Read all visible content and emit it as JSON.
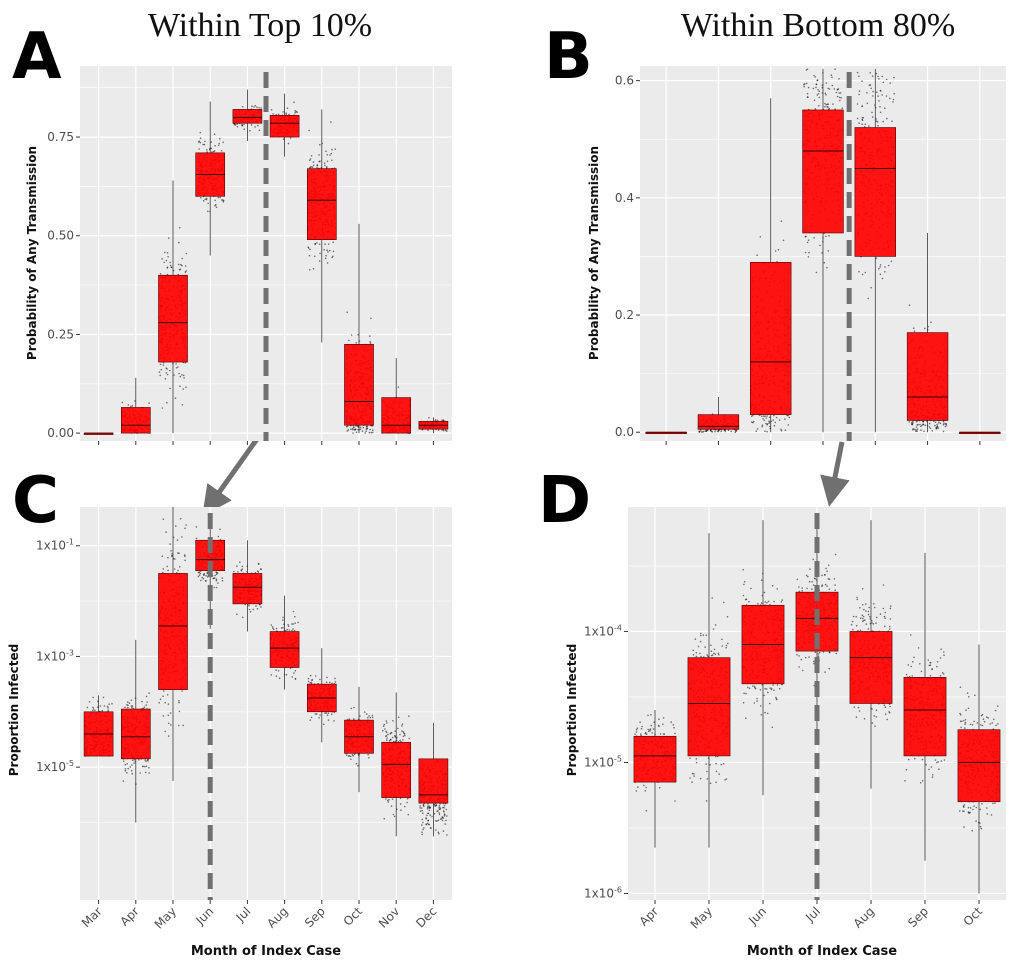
{
  "titles": {
    "left": "Within Top 10%",
    "right": "Within Bottom 80%"
  },
  "panel_letters": {
    "a": "A",
    "b": "B",
    "c": "C",
    "d": "D"
  },
  "xlabel": "Month of Index Case",
  "ylabel_top": "Probability of Any Transmission",
  "ylabel_bottom": "Proportion Infected",
  "colors": {
    "box_fill": "#ff0000",
    "panel_bg": "#ebebeb",
    "grid": "#ffffff",
    "dash_line": "#707070",
    "points": "#000000"
  },
  "chart_data": [
    {
      "panel": "A",
      "type": "boxplot",
      "title": "Within Top 10%",
      "xlabel": "",
      "ylabel": "Probability of Any Transmission",
      "yscale": "linear",
      "ylim": [
        -0.02,
        0.93
      ],
      "yticks": [
        0,
        0.25,
        0.5,
        0.75
      ],
      "ytick_labels": [
        "0.00",
        "0.25",
        "0.50",
        "0.75"
      ],
      "categories": [
        "Mar",
        "Apr",
        "May",
        "Jun",
        "Jul",
        "Aug",
        "Sep",
        "Oct",
        "Nov",
        "Dec"
      ],
      "boxes": [
        {
          "q1": 0.0,
          "median": 0.0,
          "q3": 0.0,
          "lo": 0.0,
          "hi": 0.0
        },
        {
          "q1": 0.0,
          "median": 0.02,
          "q3": 0.065,
          "lo": 0.0,
          "hi": 0.14
        },
        {
          "q1": 0.18,
          "median": 0.28,
          "q3": 0.4,
          "lo": 0.0,
          "hi": 0.64
        },
        {
          "q1": 0.6,
          "median": 0.655,
          "q3": 0.71,
          "lo": 0.45,
          "hi": 0.84
        },
        {
          "q1": 0.785,
          "median": 0.8,
          "q3": 0.82,
          "lo": 0.74,
          "hi": 0.87
        },
        {
          "q1": 0.75,
          "median": 0.785,
          "q3": 0.805,
          "lo": 0.7,
          "hi": 0.86
        },
        {
          "q1": 0.49,
          "median": 0.59,
          "q3": 0.67,
          "lo": 0.23,
          "hi": 0.82
        },
        {
          "q1": 0.02,
          "median": 0.08,
          "q3": 0.225,
          "lo": 0.0,
          "hi": 0.53
        },
        {
          "q1": 0.0,
          "median": 0.02,
          "q3": 0.09,
          "lo": 0.0,
          "hi": 0.19
        },
        {
          "q1": 0.01,
          "median": 0.02,
          "q3": 0.03,
          "lo": 0.0,
          "hi": 0.04
        }
      ],
      "vline_between": [
        "Jul",
        "Aug"
      ]
    },
    {
      "panel": "B",
      "type": "boxplot",
      "title": "Within Bottom 80%",
      "xlabel": "",
      "ylabel": "Probability of Any Transmission",
      "yscale": "linear",
      "ylim": [
        -0.015,
        0.625
      ],
      "yticks": [
        0,
        0.2,
        0.4,
        0.6
      ],
      "ytick_labels": [
        "0.0",
        "0.2",
        "0.4",
        "0.6"
      ],
      "categories": [
        "Apr",
        "May",
        "Jun",
        "Jul",
        "Aug",
        "Sep",
        "Oct"
      ],
      "boxes": [
        {
          "q1": 0.0,
          "median": 0.0,
          "q3": 0.0,
          "lo": 0.0,
          "hi": 0.0
        },
        {
          "q1": 0.005,
          "median": 0.01,
          "q3": 0.03,
          "lo": 0.0,
          "hi": 0.06
        },
        {
          "q1": 0.03,
          "median": 0.12,
          "q3": 0.29,
          "lo": 0.0,
          "hi": 0.57
        },
        {
          "q1": 0.34,
          "median": 0.48,
          "q3": 0.55,
          "lo": 0.0,
          "hi": 0.62
        },
        {
          "q1": 0.3,
          "median": 0.45,
          "q3": 0.52,
          "lo": 0.0,
          "hi": 0.62
        },
        {
          "q1": 0.02,
          "median": 0.06,
          "q3": 0.17,
          "lo": 0.0,
          "hi": 0.34
        },
        {
          "q1": 0.0,
          "median": 0.0,
          "q3": 0.0,
          "lo": 0.0,
          "hi": 0.0
        }
      ],
      "vline_between": [
        "Jul",
        "Aug"
      ]
    },
    {
      "panel": "C",
      "type": "boxplot",
      "xlabel": "Month of Index Case",
      "ylabel": "Proportion Infected",
      "yscale": "log10",
      "ylim_log10": [
        -7.4,
        -0.3
      ],
      "yticks_log10": [
        -5,
        -3,
        -1
      ],
      "ytick_labels": [
        {
          "base": "1x10",
          "exp": "-5"
        },
        {
          "base": "1x10",
          "exp": "-3"
        },
        {
          "base": "1x10",
          "exp": "-1"
        }
      ],
      "categories": [
        "Mar",
        "Apr",
        "May",
        "Jun",
        "Jul",
        "Aug",
        "Sep",
        "Oct",
        "Nov",
        "Dec"
      ],
      "boxes_log10": [
        {
          "q1": -4.8,
          "median": -4.4,
          "q3": -4.0,
          "lo": -4.8,
          "hi": -3.7
        },
        {
          "q1": -4.85,
          "median": -4.45,
          "q3": -3.95,
          "lo": -6.0,
          "hi": -2.7
        },
        {
          "q1": -3.6,
          "median": -2.45,
          "q3": -1.5,
          "lo": -5.25,
          "hi": -0.3
        },
        {
          "q1": -1.45,
          "median": -1.25,
          "q3": -0.9,
          "lo": -2.5,
          "hi": -0.55
        },
        {
          "q1": -2.05,
          "median": -1.75,
          "q3": -1.5,
          "lo": -2.55,
          "hi": -0.9
        },
        {
          "q1": -3.2,
          "median": -2.85,
          "q3": -2.55,
          "lo": -3.6,
          "hi": -1.9
        },
        {
          "q1": -4.0,
          "median": -3.75,
          "q3": -3.5,
          "lo": -4.55,
          "hi": -2.85
        },
        {
          "q1": -4.75,
          "median": -4.45,
          "q3": -4.15,
          "lo": -5.45,
          "hi": -3.55
        },
        {
          "q1": -5.55,
          "median": -4.95,
          "q3": -4.55,
          "lo": -6.25,
          "hi": -3.65
        },
        {
          "q1": -5.65,
          "median": -5.5,
          "q3": -4.85,
          "lo": -6.25,
          "hi": -4.2
        }
      ],
      "vline_at": "Jun"
    },
    {
      "panel": "D",
      "type": "boxplot",
      "xlabel": "Month of Index Case",
      "ylabel": "Proportion Infected",
      "yscale": "log10",
      "ylim_log10": [
        -6.05,
        -3.05
      ],
      "yticks_log10": [
        -6,
        -5,
        -4
      ],
      "ytick_labels": [
        {
          "base": "1x10",
          "exp": "-6"
        },
        {
          "base": "1x10",
          "exp": "-5"
        },
        {
          "base": "1x10",
          "exp": "-4"
        }
      ],
      "categories": [
        "Apr",
        "May",
        "Jun",
        "Jul",
        "Aug",
        "Sep",
        "Oct"
      ],
      "boxes_log10": [
        {
          "q1": -5.15,
          "median": -4.95,
          "q3": -4.8,
          "lo": -5.65,
          "hi": -4.6
        },
        {
          "q1": -4.95,
          "median": -4.55,
          "q3": -4.2,
          "lo": -5.65,
          "hi": -3.25
        },
        {
          "q1": -4.4,
          "median": -4.1,
          "q3": -3.8,
          "lo": -5.25,
          "hi": -3.15
        },
        {
          "q1": -4.15,
          "median": -3.9,
          "q3": -3.7,
          "lo": -4.85,
          "hi": -3.15
        },
        {
          "q1": -4.55,
          "median": -4.2,
          "q3": -4.0,
          "lo": -5.2,
          "hi": -3.15
        },
        {
          "q1": -4.95,
          "median": -4.6,
          "q3": -4.35,
          "lo": -5.75,
          "hi": -3.4
        },
        {
          "q1": -5.3,
          "median": -5.0,
          "q3": -4.75,
          "lo": -6.0,
          "hi": -4.1
        }
      ],
      "vline_at": "Jul"
    }
  ]
}
